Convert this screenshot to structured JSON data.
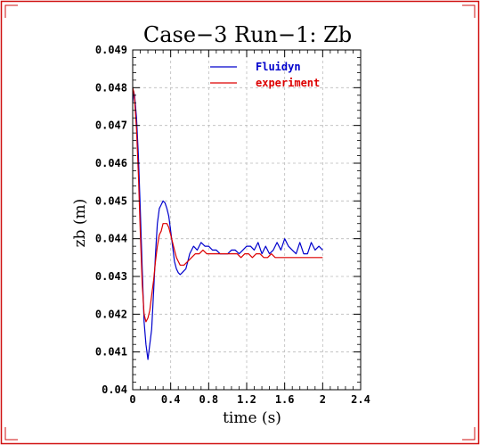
{
  "colors": {
    "frame": "#d01010",
    "series_fluidyn": "#0000cc",
    "series_experiment": "#dd0000",
    "grid": "#bbbbbb",
    "axis": "#000000"
  },
  "chart_data": {
    "type": "line",
    "title": "Case−3 Run−1: Zb",
    "xlabel": "time (s)",
    "ylabel": "zb (m)",
    "xlim": [
      0,
      2.4
    ],
    "ylim": [
      0.04,
      0.049
    ],
    "xticks": [
      0,
      0.4,
      0.8,
      1.2,
      1.6,
      2,
      2.4
    ],
    "xtick_labels": [
      "0",
      "0.4",
      "0.8",
      "1.2",
      "1.6",
      "2",
      "2.4"
    ],
    "yticks": [
      0.04,
      0.041,
      0.042,
      0.043,
      0.044,
      0.045,
      0.046,
      0.047,
      0.048,
      0.049
    ],
    "ytick_labels": [
      "0.04",
      "0.041",
      "0.042",
      "0.043",
      "0.044",
      "0.045",
      "0.046",
      "0.047",
      "0.048",
      "0.049"
    ],
    "grid": true,
    "legend_position": "top-right",
    "series": [
      {
        "name": "Fluidyn",
        "color": "#0000cc",
        "x": [
          0.0,
          0.01,
          0.02,
          0.04,
          0.06,
          0.08,
          0.1,
          0.12,
          0.14,
          0.16,
          0.18,
          0.2,
          0.22,
          0.24,
          0.26,
          0.28,
          0.3,
          0.32,
          0.34,
          0.36,
          0.38,
          0.4,
          0.42,
          0.44,
          0.46,
          0.48,
          0.5,
          0.52,
          0.54,
          0.56,
          0.58,
          0.6,
          0.64,
          0.68,
          0.72,
          0.76,
          0.8,
          0.84,
          0.88,
          0.92,
          0.96,
          1.0,
          1.04,
          1.08,
          1.12,
          1.16,
          1.2,
          1.24,
          1.28,
          1.32,
          1.36,
          1.4,
          1.44,
          1.48,
          1.52,
          1.56,
          1.6,
          1.64,
          1.68,
          1.72,
          1.76,
          1.8,
          1.84,
          1.88,
          1.92,
          1.96,
          2.0
        ],
        "y": [
          0.0476,
          0.0479,
          0.0478,
          0.0472,
          0.0462,
          0.0448,
          0.0432,
          0.0418,
          0.0412,
          0.0408,
          0.0412,
          0.0416,
          0.0426,
          0.0436,
          0.0444,
          0.0448,
          0.0449,
          0.045,
          0.04495,
          0.0448,
          0.0446,
          0.0442,
          0.0438,
          0.0434,
          0.0432,
          0.0431,
          0.04305,
          0.0431,
          0.04315,
          0.0432,
          0.0434,
          0.0436,
          0.0438,
          0.0437,
          0.0439,
          0.0438,
          0.0438,
          0.0437,
          0.0437,
          0.0436,
          0.0436,
          0.0436,
          0.0437,
          0.0437,
          0.0436,
          0.0437,
          0.0438,
          0.0438,
          0.0437,
          0.0439,
          0.0436,
          0.0438,
          0.0436,
          0.0437,
          0.0439,
          0.0437,
          0.044,
          0.0438,
          0.0437,
          0.0436,
          0.0439,
          0.0436,
          0.0436,
          0.0439,
          0.0437,
          0.0438,
          0.0437
        ]
      },
      {
        "name": "experiment",
        "color": "#dd0000",
        "x": [
          0.0,
          0.01,
          0.02,
          0.04,
          0.06,
          0.08,
          0.1,
          0.12,
          0.14,
          0.16,
          0.18,
          0.2,
          0.22,
          0.24,
          0.26,
          0.28,
          0.3,
          0.32,
          0.34,
          0.36,
          0.38,
          0.4,
          0.42,
          0.44,
          0.46,
          0.48,
          0.5,
          0.54,
          0.58,
          0.62,
          0.66,
          0.7,
          0.74,
          0.78,
          0.82,
          0.86,
          0.9,
          0.94,
          0.98,
          1.02,
          1.06,
          1.1,
          1.14,
          1.18,
          1.22,
          1.26,
          1.3,
          1.34,
          1.38,
          1.42,
          1.46,
          1.5,
          1.54,
          1.58,
          1.62,
          1.66,
          1.7,
          1.74,
          1.78,
          1.82,
          1.86,
          1.9,
          1.94,
          1.98,
          2.0
        ],
        "y": [
          0.048,
          0.0479,
          0.0477,
          0.0469,
          0.0457,
          0.0442,
          0.0428,
          0.042,
          0.0418,
          0.0419,
          0.0421,
          0.0425,
          0.0429,
          0.0434,
          0.0438,
          0.0441,
          0.0442,
          0.0444,
          0.0444,
          0.0444,
          0.0443,
          0.0441,
          0.0439,
          0.0437,
          0.0435,
          0.0434,
          0.0433,
          0.0433,
          0.0434,
          0.0435,
          0.0436,
          0.0436,
          0.0437,
          0.0436,
          0.0436,
          0.0436,
          0.0436,
          0.0436,
          0.0436,
          0.0436,
          0.0436,
          0.0436,
          0.0435,
          0.0436,
          0.0436,
          0.0435,
          0.0436,
          0.0436,
          0.0435,
          0.0435,
          0.0436,
          0.0435,
          0.0435,
          0.0435,
          0.0435,
          0.0435,
          0.0435,
          0.0435,
          0.0435,
          0.0435,
          0.0435,
          0.0435,
          0.0435,
          0.0435,
          0.0435
        ]
      }
    ]
  }
}
